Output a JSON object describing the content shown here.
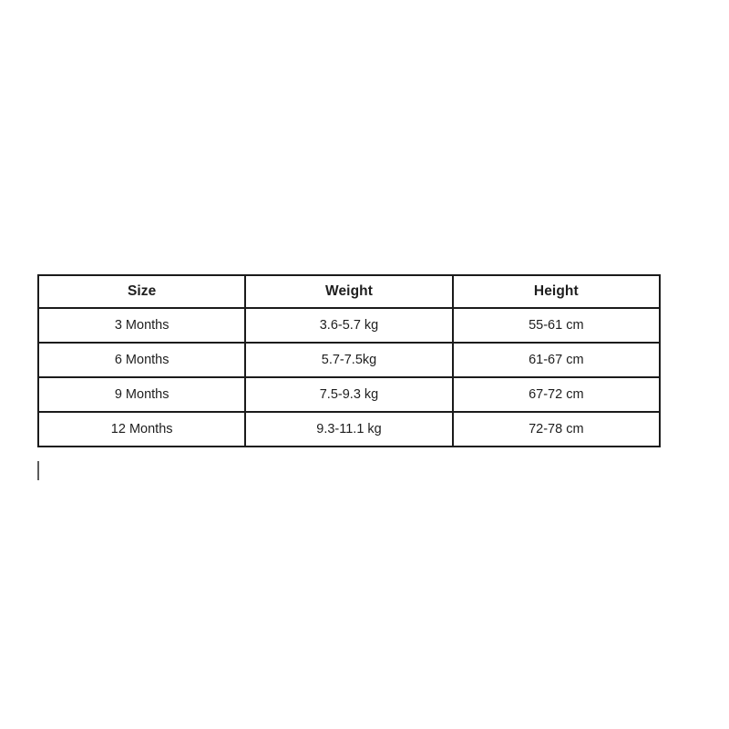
{
  "page": {
    "background_color": "#ffffff",
    "text_color": "#1e1e1e",
    "table_border_color": "#1b1b1b"
  },
  "table": {
    "headers": [
      "Size",
      "Weight",
      "Height"
    ],
    "rows": [
      [
        "3 Months",
        "3.6-5.7 kg",
        "55-61 cm"
      ],
      [
        "6 Months",
        "5.7-7.5kg",
        "61-67 cm"
      ],
      [
        "9 Months",
        "7.5-9.3 kg",
        "67-72 cm"
      ],
      [
        "12 Months",
        "9.3-11.1 kg",
        "72-78 cm"
      ]
    ]
  },
  "cursor": {
    "type": "text-insertion-caret"
  }
}
